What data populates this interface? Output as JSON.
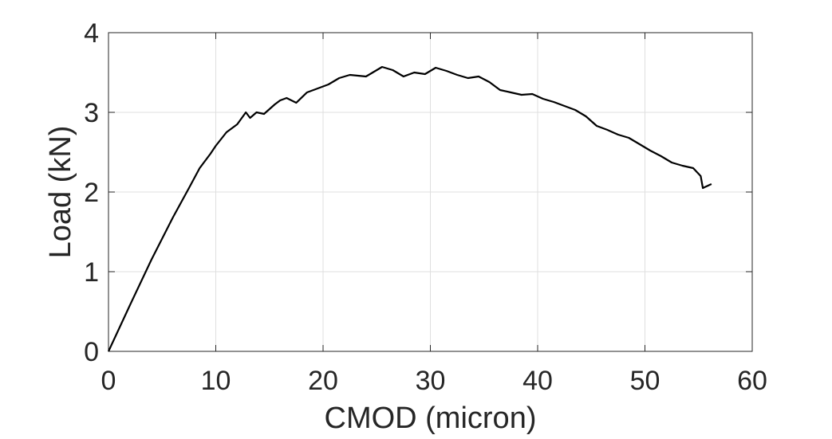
{
  "chart_data": {
    "type": "line",
    "title": "",
    "xlabel": "CMOD (micron)",
    "ylabel": "Load (kN)",
    "xlim": [
      0,
      60
    ],
    "ylim": [
      0,
      4
    ],
    "xticks": [
      "0",
      "10",
      "20",
      "30",
      "40",
      "50",
      "60"
    ],
    "yticks": [
      "0",
      "1",
      "2",
      "3",
      "4"
    ],
    "grid": true,
    "line_color": "#000000",
    "series": [
      {
        "x": [
          0,
          2,
          4,
          6,
          7.5,
          8.5,
          9.5,
          10,
          11,
          12,
          12.8,
          13.2,
          13.8,
          14.5,
          15.5,
          16,
          16.6,
          17.5,
          18.5,
          19.5,
          20.5,
          21.5,
          22.5,
          24,
          25.5,
          26.5,
          27.5,
          28.5,
          29.5,
          30.5,
          31.5,
          32.5,
          33.5,
          34.5,
          35.5,
          36.5,
          37.5,
          38.5,
          39.5,
          40.5,
          41.5,
          42.5,
          43.5,
          44.5,
          45.5,
          46.5,
          47.5,
          48.5,
          49.5,
          50.5,
          51.5,
          52.5,
          53.5,
          54.5,
          55.2,
          55.4,
          56.2
        ],
        "y": [
          0,
          0.58,
          1.15,
          1.68,
          2.05,
          2.3,
          2.48,
          2.58,
          2.75,
          2.85,
          3.0,
          2.93,
          3.0,
          2.98,
          3.1,
          3.15,
          3.18,
          3.12,
          3.25,
          3.3,
          3.35,
          3.43,
          3.47,
          3.45,
          3.57,
          3.53,
          3.45,
          3.5,
          3.48,
          3.56,
          3.52,
          3.47,
          3.43,
          3.45,
          3.38,
          3.28,
          3.25,
          3.22,
          3.23,
          3.17,
          3.13,
          3.08,
          3.03,
          2.95,
          2.83,
          2.78,
          2.72,
          2.68,
          2.6,
          2.52,
          2.45,
          2.37,
          2.33,
          2.3,
          2.2,
          2.05,
          2.1
        ]
      }
    ]
  }
}
